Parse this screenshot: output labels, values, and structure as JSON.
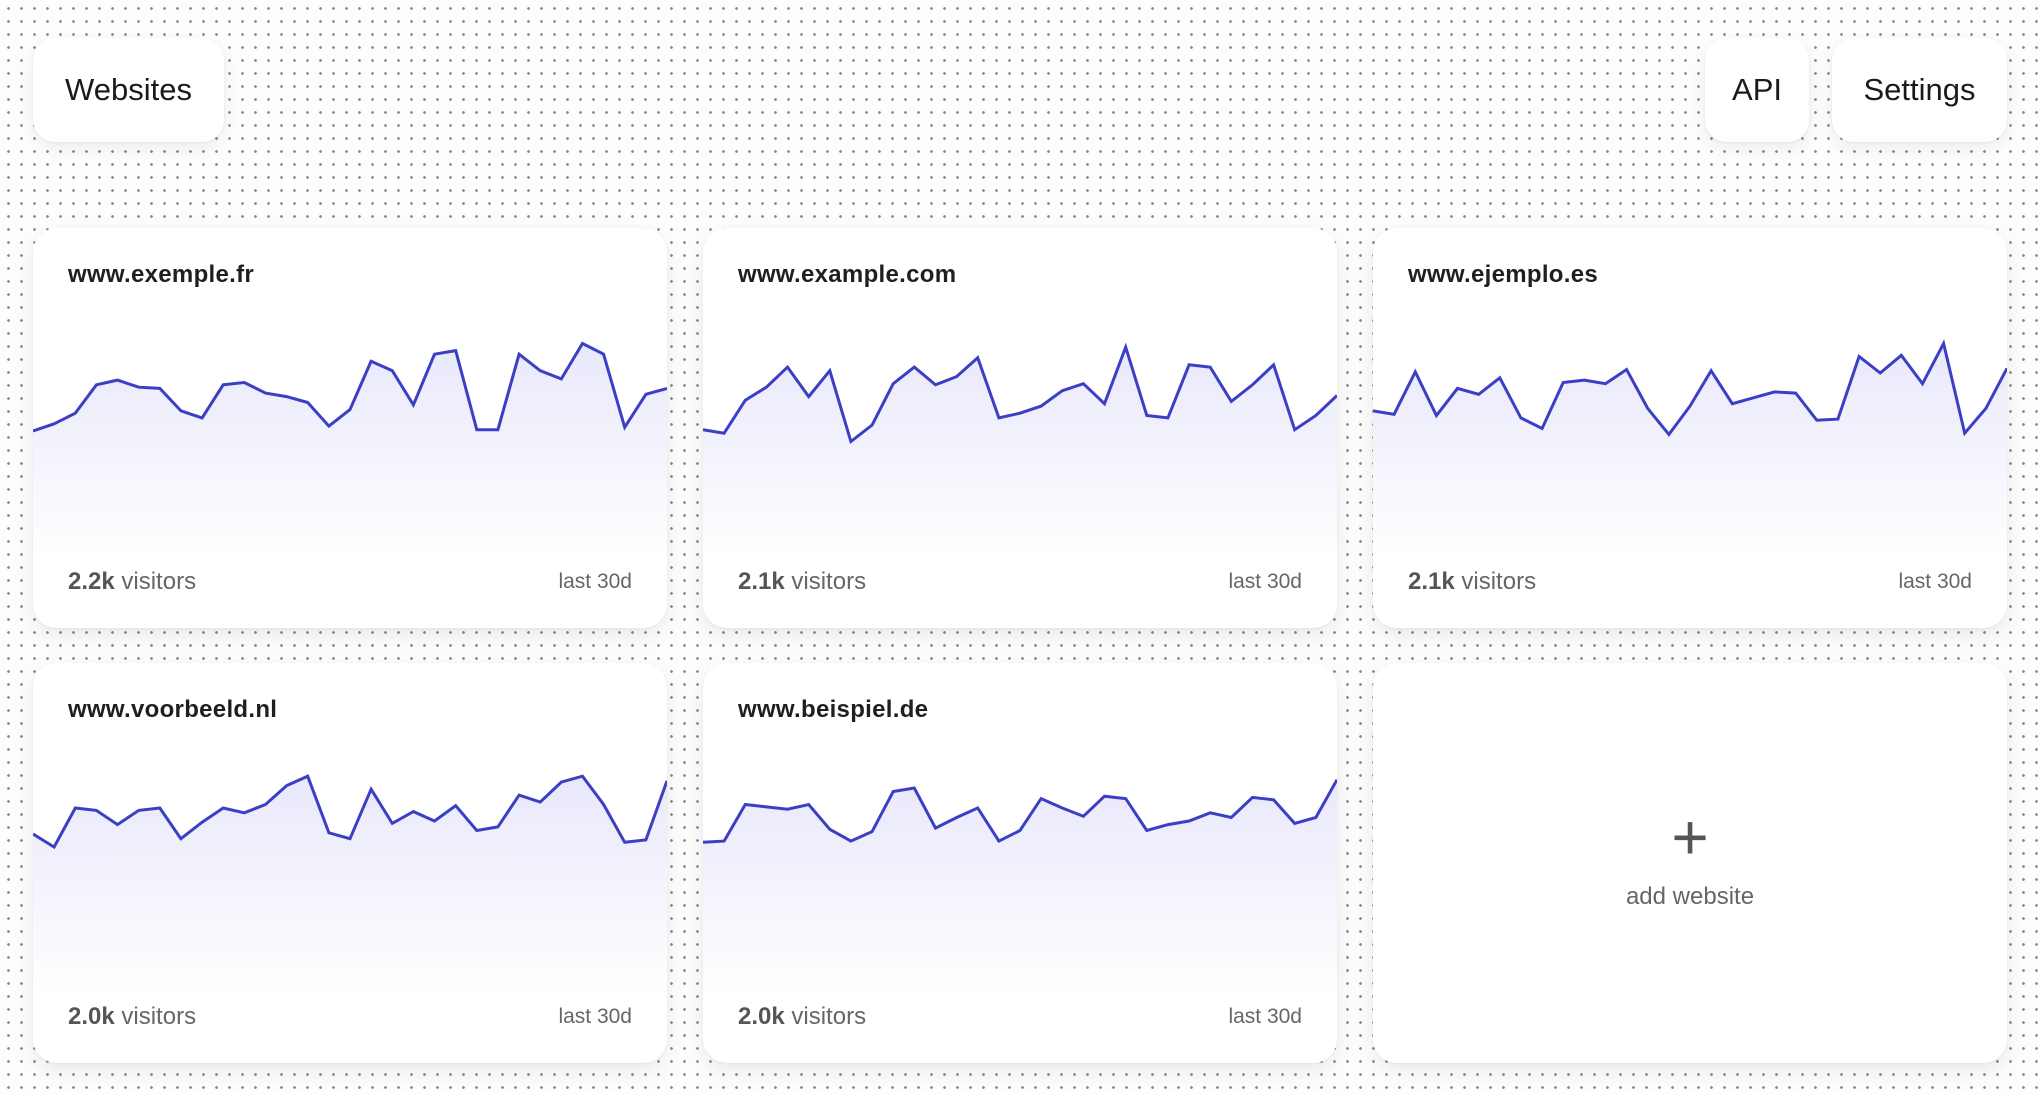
{
  "nav": {
    "websites": "Websites",
    "api": "API",
    "settings": "Settings"
  },
  "sites": [
    {
      "domain": "www.exemple.fr",
      "visitors_value": "2.2k",
      "visitors_suffix": "visitors",
      "period": "last 30d",
      "series": [
        23,
        29,
        38,
        62,
        66,
        60,
        59,
        40,
        34,
        62,
        64,
        55,
        52,
        47,
        27,
        41,
        82,
        74,
        45,
        88,
        91,
        24,
        24,
        88,
        74,
        67,
        97,
        88,
        26,
        54,
        59
      ]
    },
    {
      "domain": "www.example.com",
      "visitors_value": "2.1k",
      "visitors_suffix": "visitors",
      "period": "last 30d",
      "series": [
        24,
        21,
        49,
        60,
        77,
        52,
        74,
        14,
        28,
        63,
        77,
        62,
        69,
        85,
        34,
        38,
        44,
        57,
        63,
        46,
        94,
        36,
        34,
        79,
        77,
        48,
        62,
        79,
        24,
        36,
        53
      ]
    },
    {
      "domain": "www.ejemplo.es",
      "visitors_value": "2.1k",
      "visitors_suffix": "visitors",
      "period": "last 30d",
      "series": [
        40,
        37,
        73,
        36,
        59,
        54,
        68,
        34,
        25,
        64,
        66,
        63,
        75,
        42,
        20,
        44,
        74,
        46,
        51,
        56,
        55,
        32,
        33,
        86,
        72,
        87,
        63,
        97,
        21,
        42,
        76
      ]
    },
    {
      "domain": "www.voorbeeld.nl",
      "visitors_value": "2.0k",
      "visitors_suffix": "visitors",
      "period": "last 30d",
      "series": [
        50,
        39,
        72,
        70,
        58,
        70,
        72,
        46,
        60,
        72,
        68,
        75,
        91,
        99,
        51,
        46,
        88,
        59,
        69,
        61,
        74,
        53,
        56,
        83,
        77,
        94,
        99,
        75,
        43,
        45,
        95
      ]
    },
    {
      "domain": "www.beispiel.de",
      "visitors_value": "2.0k",
      "visitors_suffix": "visitors",
      "period": "last 30d",
      "series": [
        43,
        44,
        75,
        73,
        71,
        75,
        54,
        44,
        52,
        86,
        89,
        55,
        64,
        72,
        44,
        53,
        80,
        72,
        65,
        82,
        80,
        53,
        58,
        61,
        68,
        64,
        81,
        79,
        59,
        64,
        96
      ]
    }
  ],
  "add_card": {
    "icon": "plus-icon",
    "label": "add website"
  },
  "colors": {
    "line": "#3b3fc3",
    "fill_top": "#e8e8fb",
    "fill_bottom": "#ffffff",
    "background": "#fdfdfd"
  }
}
